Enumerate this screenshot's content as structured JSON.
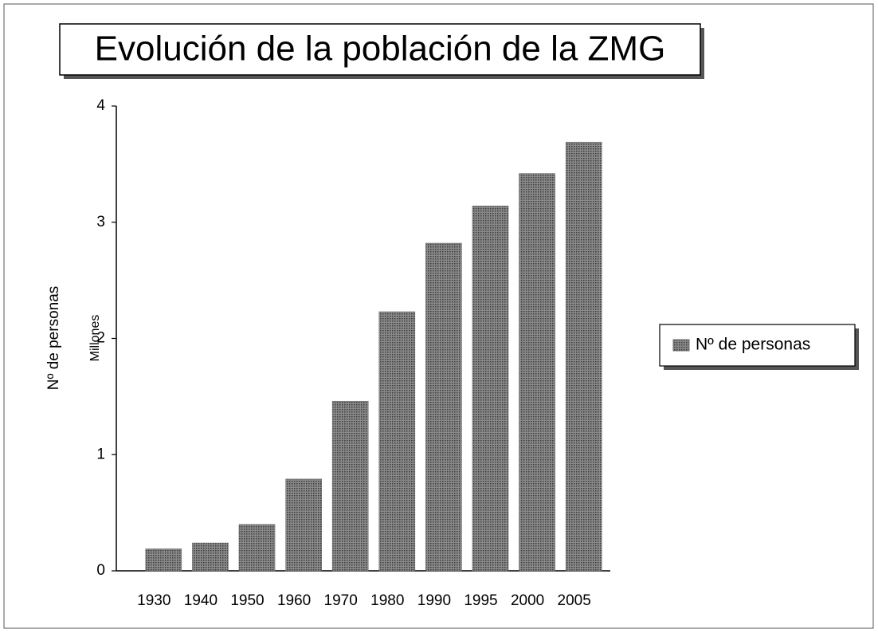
{
  "chart_data": {
    "type": "bar",
    "title": "Evolución de la población de la ZMG",
    "y_label": [
      "Nº de personas",
      "Millones"
    ],
    "categories": [
      "1930",
      "1940",
      "1950",
      "1960",
      "1970",
      "1980",
      "1990",
      "1995",
      "2000",
      "2005"
    ],
    "series": [
      {
        "name": "Nº de personas",
        "color": "#6e6e6e",
        "values": [
          0.19,
          0.24,
          0.4,
          0.79,
          1.46,
          2.23,
          2.82,
          3.14,
          3.42,
          3.69
        ]
      }
    ],
    "ylim": [
      0,
      4
    ],
    "yticks": [
      0,
      1,
      2,
      3,
      4
    ],
    "grid": false,
    "legend": "right"
  }
}
